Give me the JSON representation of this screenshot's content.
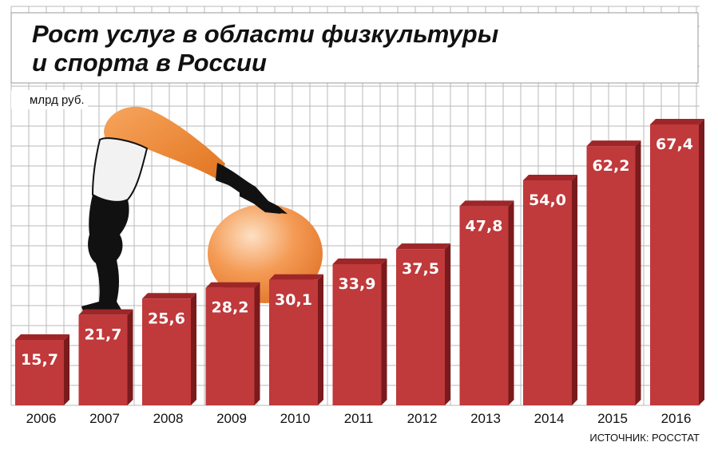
{
  "chart_data": {
    "type": "bar",
    "title": [
      "Рост услуг в области физкультуры",
      "и спорта в России"
    ],
    "unit_label": "млрд руб.",
    "source": "ИСТОЧНИК: РОССТАТ",
    "categories": [
      "2006",
      "2007",
      "2008",
      "2009",
      "2010",
      "2011",
      "2012",
      "2013",
      "2014",
      "2015",
      "2016"
    ],
    "values": [
      15.7,
      21.7,
      25.6,
      28.2,
      30.1,
      33.9,
      37.5,
      47.8,
      54.0,
      62.2,
      67.4
    ],
    "value_labels": [
      "15,7",
      "21,7",
      "25,6",
      "28,2",
      "30,1",
      "33,9",
      "37,5",
      "47,8",
      "54,0",
      "62,2",
      "67,4"
    ],
    "ylim": [
      0,
      70
    ],
    "grid": true,
    "colors": {
      "bar_front": "#c0393b",
      "bar_side": "#7a1a1c",
      "bar_top": "#9e2628",
      "grid": "#b8b8b8",
      "ball": "#f08a3c",
      "legs": "#e87f2e",
      "silhouette": "#111111"
    }
  }
}
